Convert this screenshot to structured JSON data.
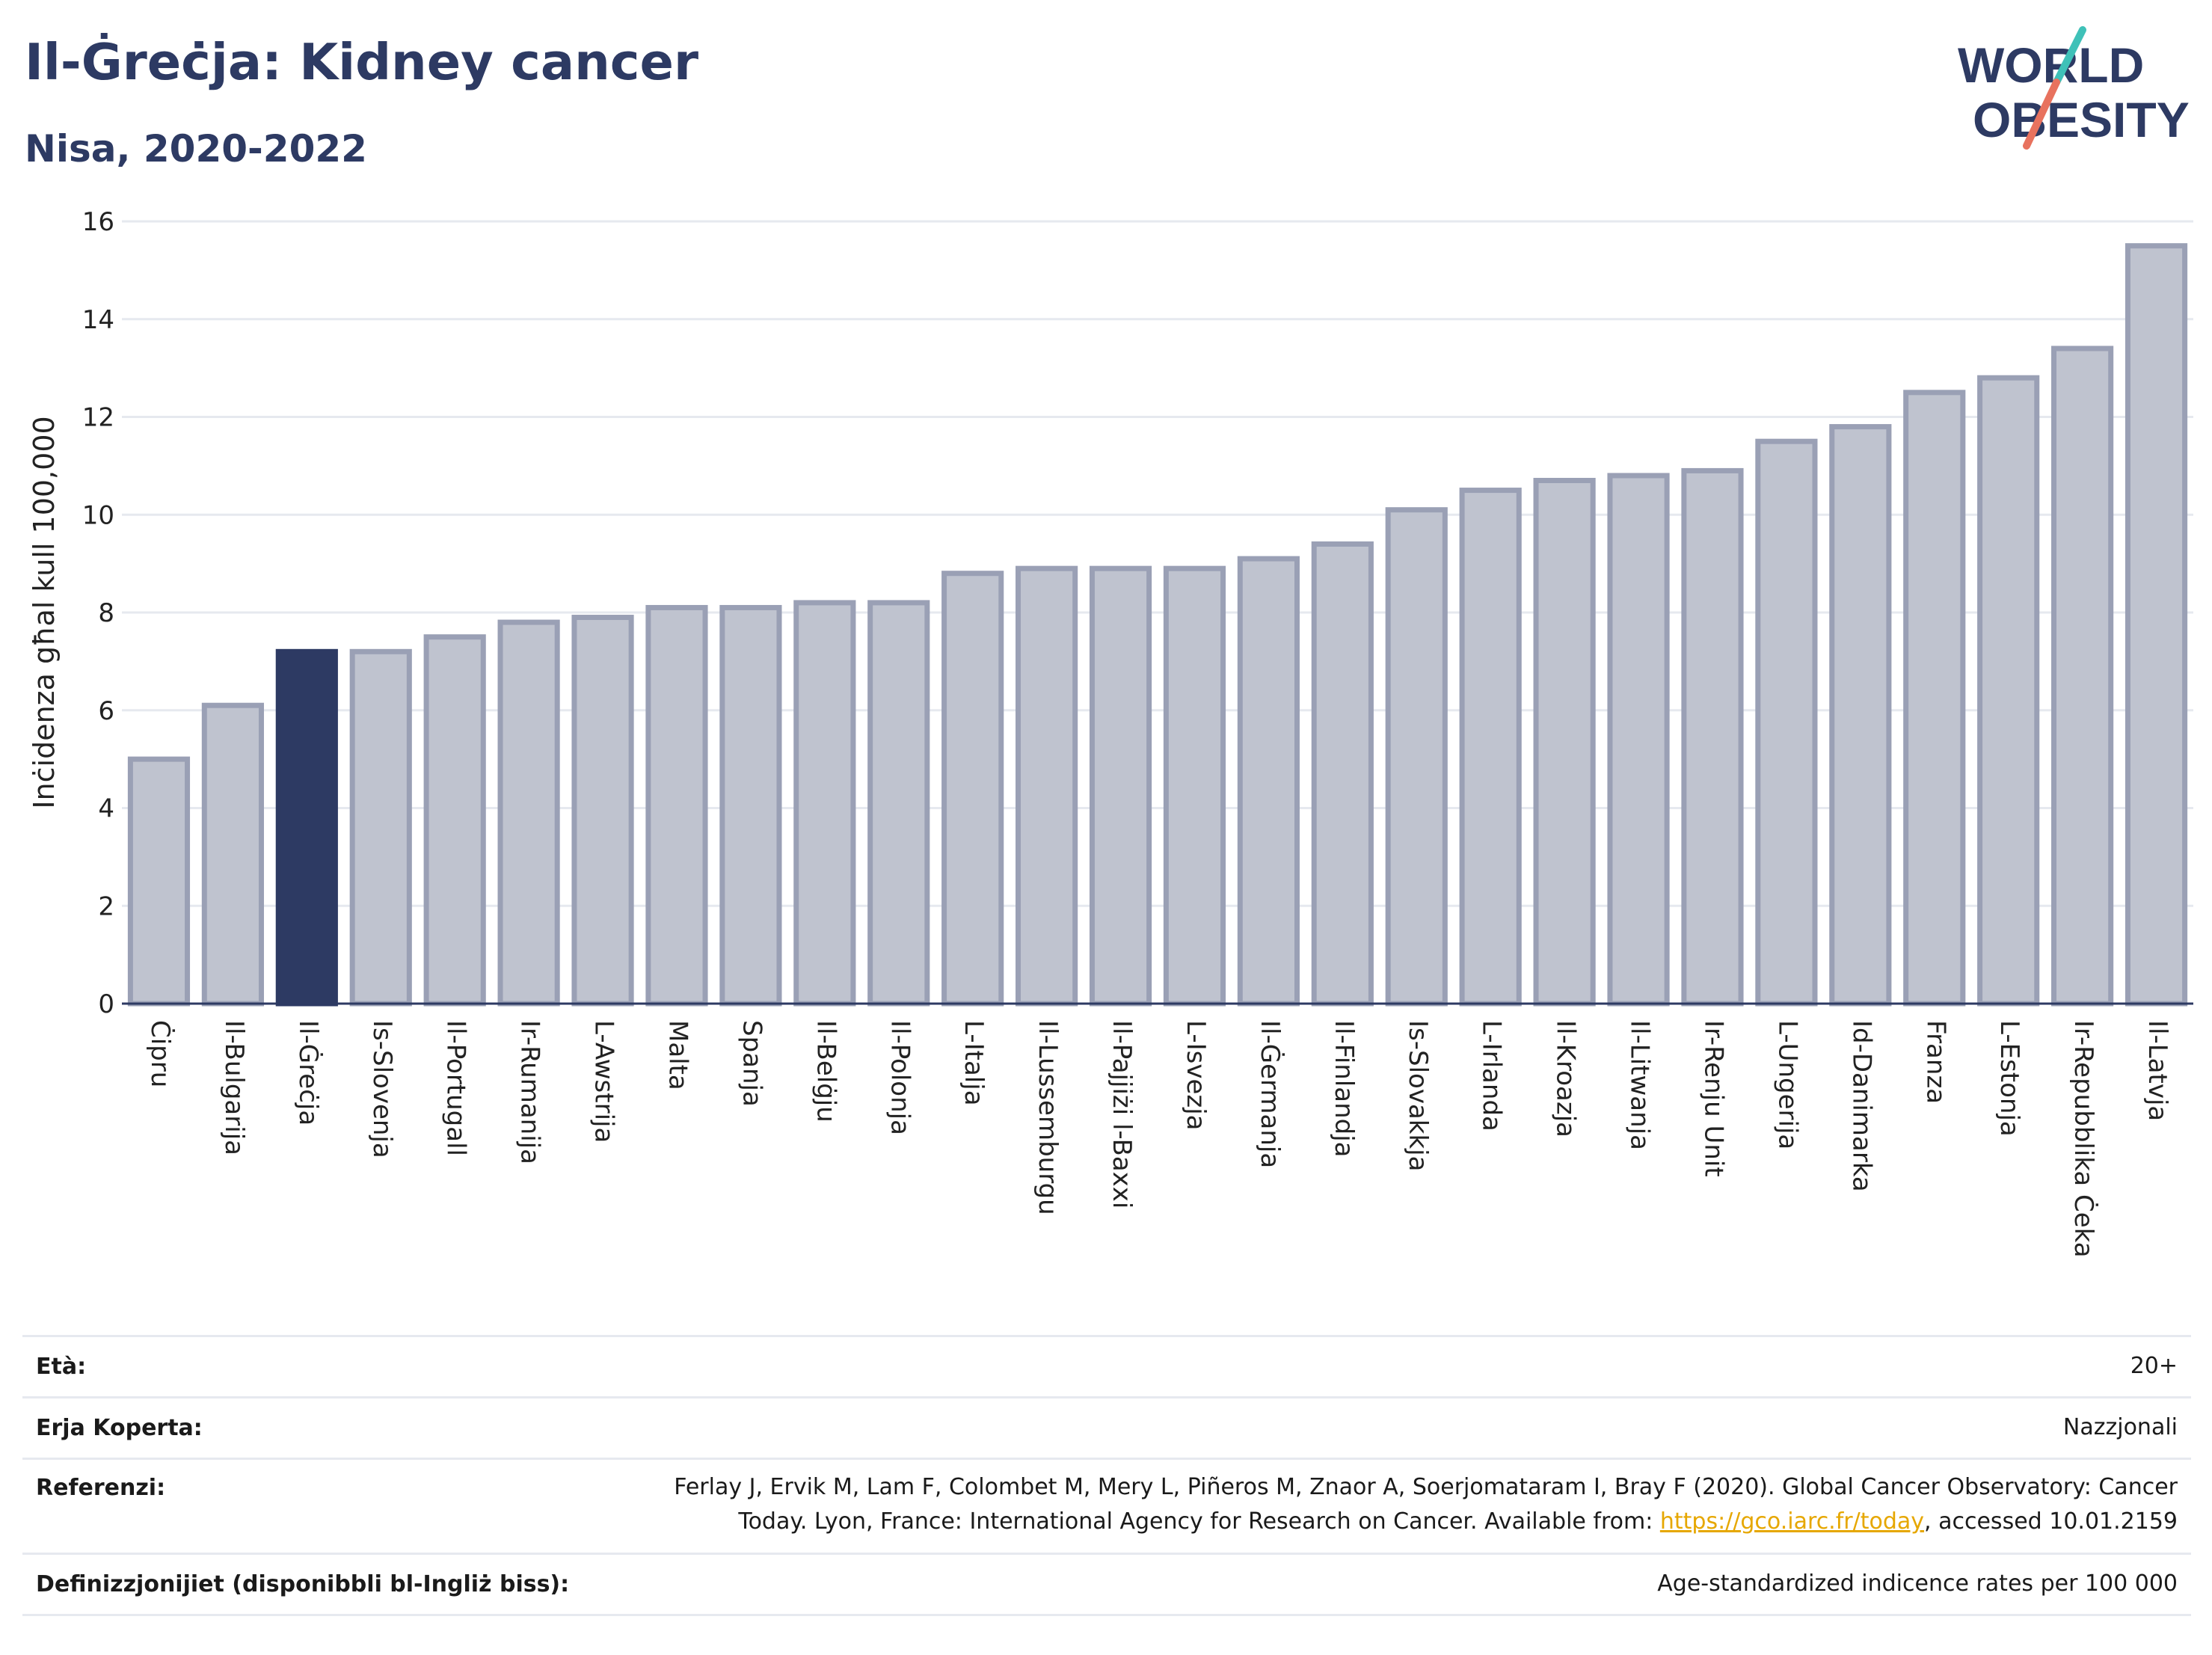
{
  "header": {
    "title": "Il-Ġreċja: Kidney cancer",
    "subtitle": "Nisa, 2020-2022"
  },
  "logo": {
    "line1": "WORLD",
    "line2": "OBESITY",
    "accent_teal": "#3fc1b8",
    "accent_coral": "#e8725e",
    "text_color": "#2d3a63"
  },
  "colors": {
    "bar": "#bfc3cf",
    "bar_stroke": "#9aa0b5",
    "highlight": "#2d3a63",
    "grid": "#e6e9ef"
  },
  "chart_data": {
    "type": "bar",
    "ylabel": "Inċidenza għal kull 100,000",
    "xlabel": "",
    "ylim": [
      0,
      16
    ],
    "yticks": [
      0,
      2,
      4,
      6,
      8,
      10,
      12,
      14,
      16
    ],
    "grid": true,
    "highlight_category": "Il-Ġreċja",
    "categories": [
      "Ċipru",
      "Il-Bulgarija",
      "Il-Ġreċja",
      "Is-Slovenja",
      "Il-Portugall",
      "Ir-Rumanija",
      "L-Awstrija",
      "Malta",
      "Spanja",
      "Il-Belġju",
      "Il-Polonja",
      "L-Italja",
      "Il-Lussemburgu",
      "Il-Pajjiżi l-Baxxi",
      "L-Isvezja",
      "Il-Ġermanja",
      "Il-Finlandja",
      "Is-Slovakkja",
      "L-Irlanda",
      "Il-Kroazja",
      "Il-Litwanja",
      "Ir-Renju Unit",
      "L-Ungerija",
      "Id-Danimarka",
      "Franza",
      "L-Estonja",
      "Ir-Repubblika Ċeka",
      "Il-Latvja"
    ],
    "values": [
      5.0,
      6.1,
      7.2,
      7.2,
      7.5,
      7.8,
      7.9,
      8.1,
      8.1,
      8.2,
      8.2,
      8.8,
      8.9,
      8.9,
      8.9,
      9.1,
      9.4,
      10.1,
      10.5,
      10.7,
      10.8,
      10.9,
      11.5,
      11.8,
      12.5,
      12.8,
      13.4,
      15.5
    ]
  },
  "meta": {
    "age_label": "Età:",
    "age_value": "20+",
    "area_label": "Erja Koperta:",
    "area_value": "Nazzjonali",
    "ref_label": "Referenzi:",
    "ref_text_1": "Ferlay J, Ervik M, Lam F, Colombet M, Mery L, Piñeros M, Znaor A, Soerjomataram I, Bray F (2020). Global Cancer Observatory: Cancer",
    "ref_text_2": "Today. Lyon, France: International Agency for Research on Cancer. Available from: ",
    "ref_link": "https://gco.iarc.fr/today",
    "ref_text_3": ", accessed 10.01.2159",
    "def_label": "Definizzjonijiet (disponibbli bl-Ingliż biss):",
    "def_value": "Age-standardized indicence rates per 100 000"
  }
}
